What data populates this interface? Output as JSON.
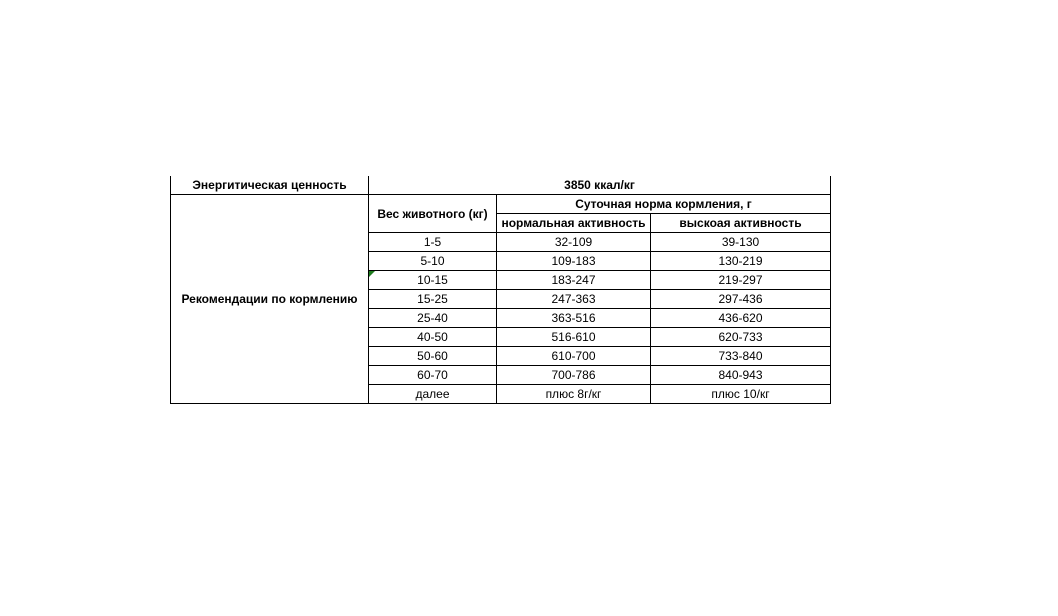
{
  "energy": {
    "label": "Энергитическая ценность",
    "value": "3850 ккал/кг"
  },
  "recommendations_label": "Рекомендации по кормлению",
  "headers": {
    "weight": "Вес животного (кг)",
    "daily_norm": "Суточная норма кормления, г",
    "normal": "нормальная активность",
    "high": "выскоая активность"
  },
  "rows": [
    [
      "1-5",
      "32-109",
      "39-130"
    ],
    [
      "5-10",
      "109-183",
      "130-219"
    ],
    [
      "10-15",
      "183-247",
      "219-297"
    ],
    [
      "15-25",
      "247-363",
      "297-436"
    ],
    [
      "25-40",
      "363-516",
      "436-620"
    ],
    [
      "40-50",
      "516-610",
      "620-733"
    ],
    [
      "50-60",
      "610-700",
      "733-840"
    ],
    [
      "60-70",
      "700-786",
      "840-943"
    ],
    [
      "далее",
      "плюс 8г/кг",
      "плюс 10/кг"
    ]
  ],
  "colors": {
    "comment_marker": "#1e7b1e"
  }
}
